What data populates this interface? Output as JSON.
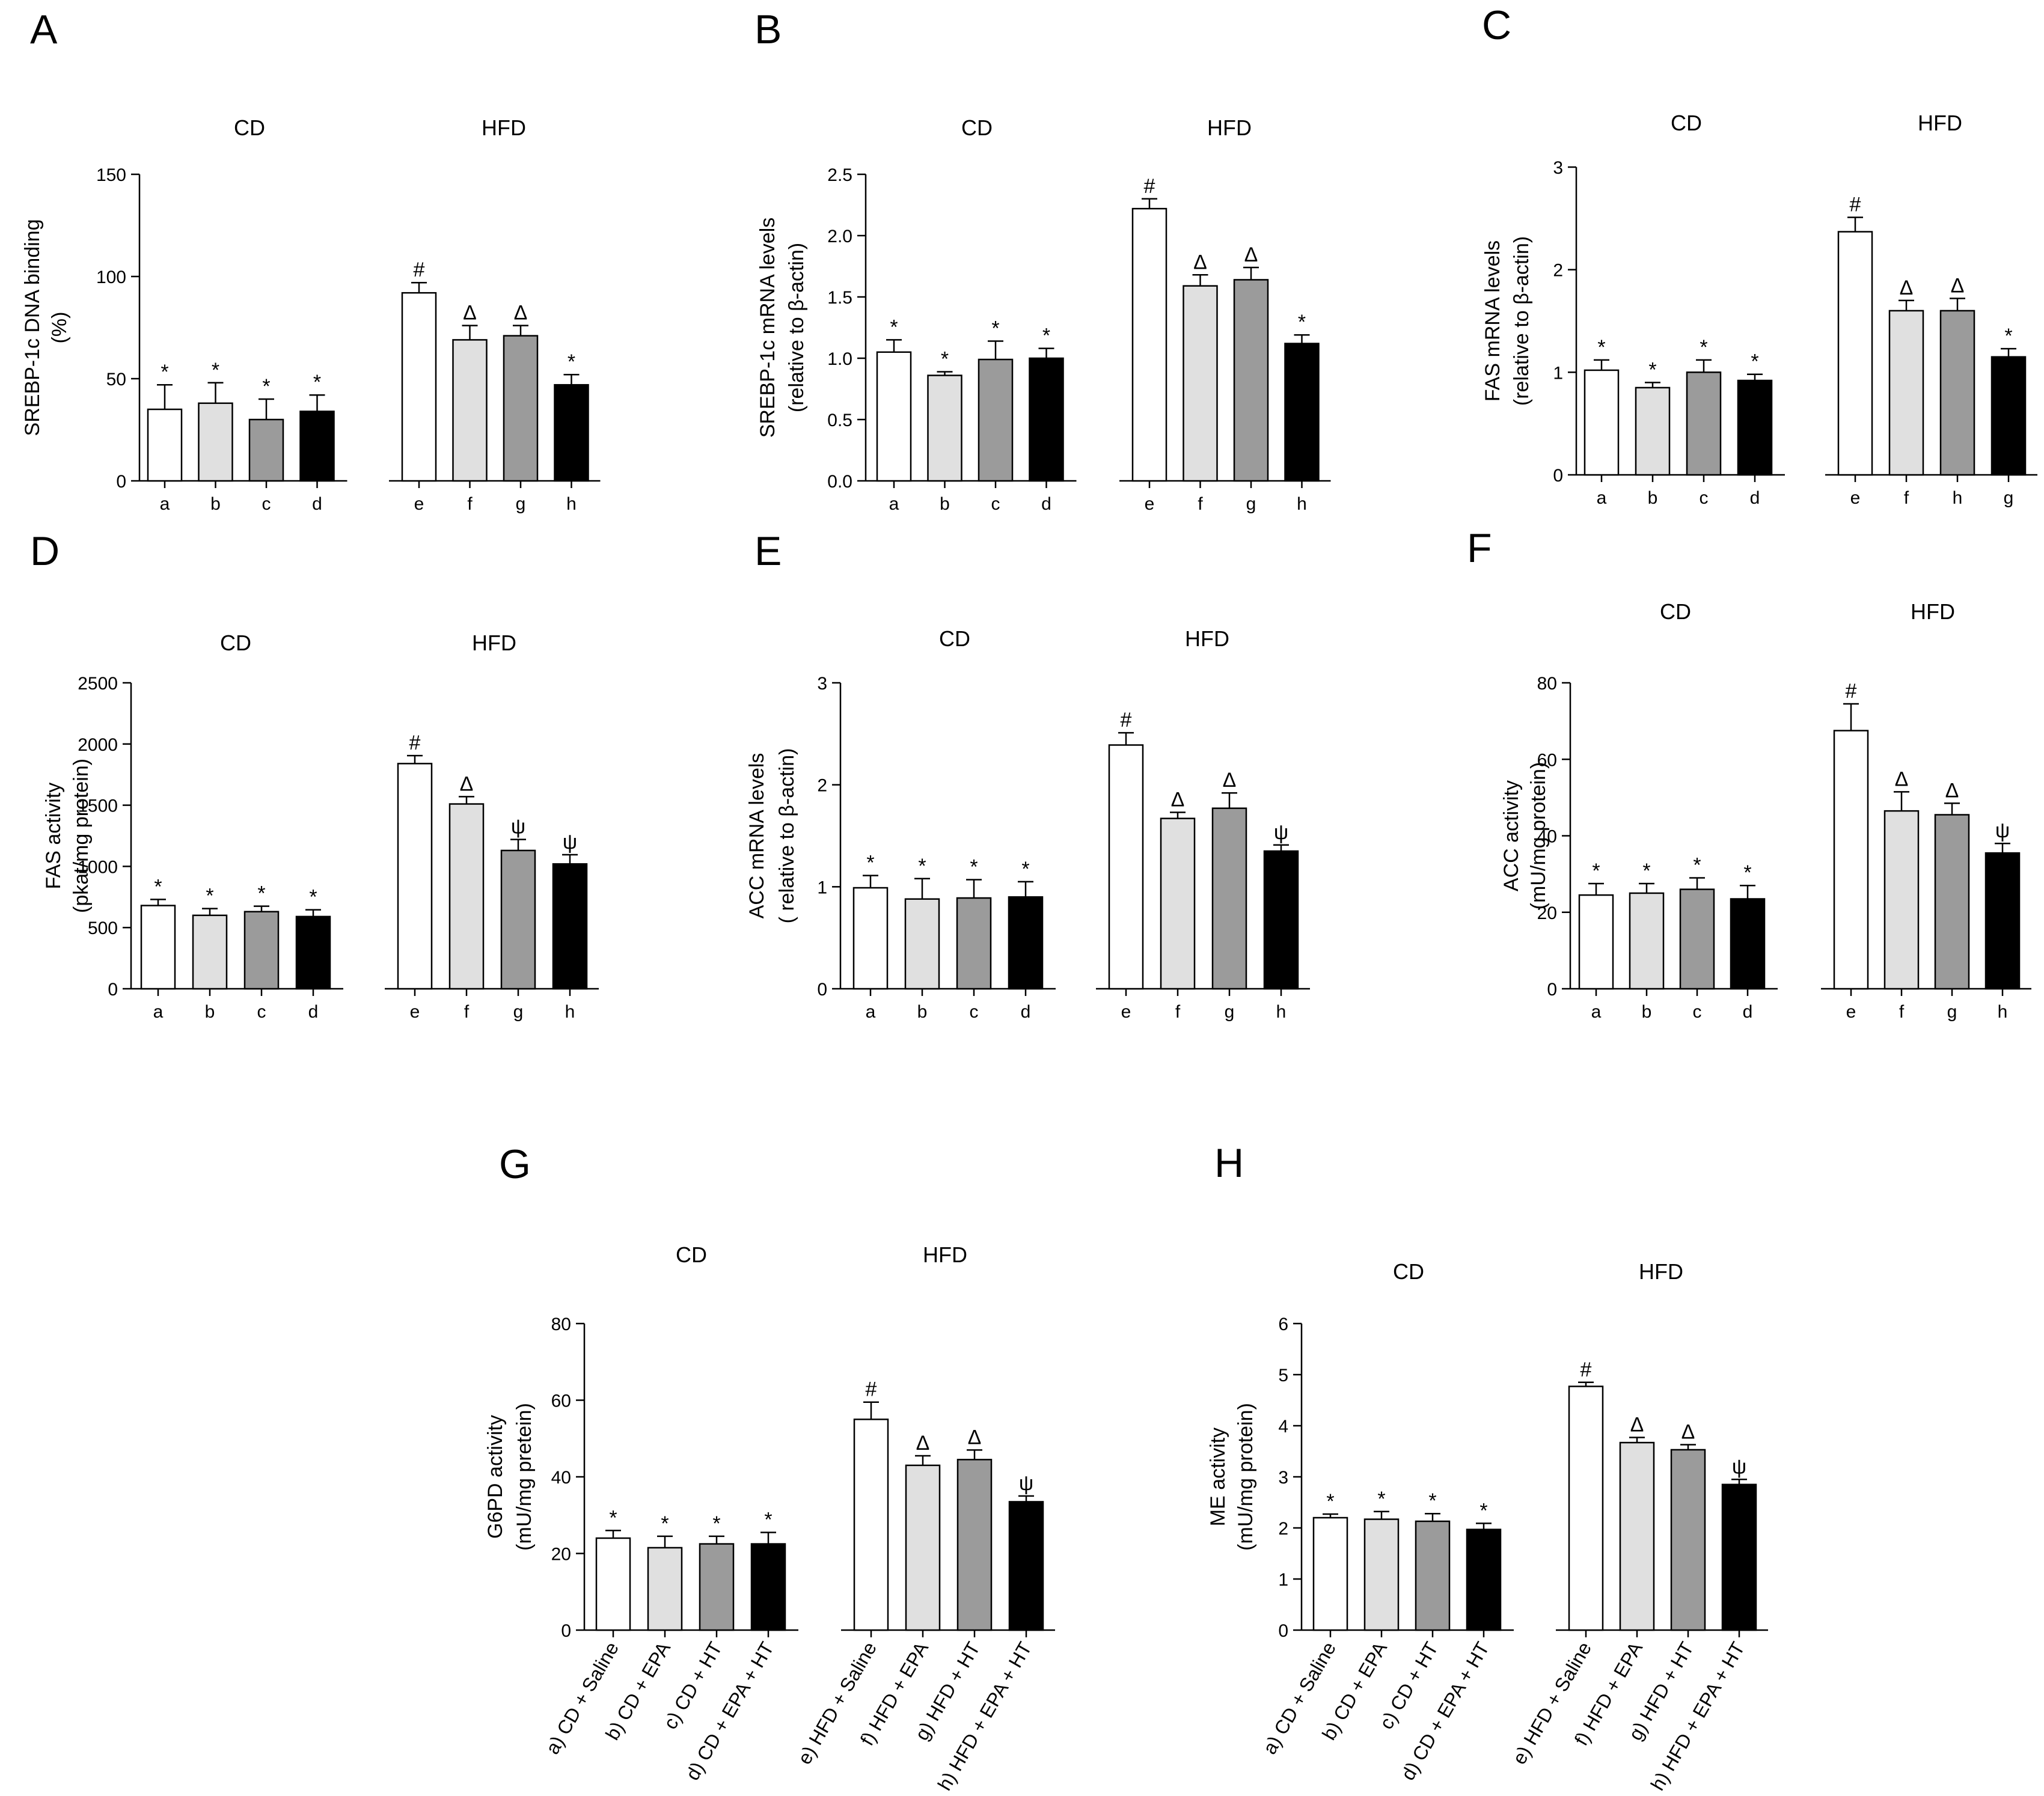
{
  "colors": {
    "bar_a": "#ffffff",
    "bar_b": "#e0e0e0",
    "bar_c": "#9b9b9b",
    "bar_d": "#000000",
    "stroke": "#000000"
  },
  "chart_data": [
    {
      "panel": "A",
      "type": "bar",
      "group_labels": [
        "CD",
        "HFD"
      ],
      "ylabel": [
        "SREBP-1c DNA binding",
        "(%)"
      ],
      "ylim": [
        0,
        150
      ],
      "yticks": [
        0,
        50,
        100,
        150
      ],
      "categories": [
        "a",
        "b",
        "c",
        "d",
        "e",
        "f",
        "g",
        "h"
      ],
      "values": [
        35,
        38,
        30,
        34,
        92,
        69,
        71,
        47
      ],
      "errors": [
        12,
        10,
        10,
        8,
        5,
        7,
        5,
        5
      ],
      "markers": [
        "*",
        "*",
        "*",
        "*",
        "#",
        "Δ",
        "Δ",
        "*"
      ]
    },
    {
      "panel": "B",
      "type": "bar",
      "group_labels": [
        "CD",
        "HFD"
      ],
      "ylabel": [
        "SREBP-1c mRNA levels",
        "(relative to β-actin)"
      ],
      "ylim": [
        0,
        2.5
      ],
      "yticks": [
        0.0,
        0.5,
        1.0,
        1.5,
        2.0,
        2.5
      ],
      "tick_decimals": 1,
      "categories": [
        "a",
        "b",
        "c",
        "d",
        "e",
        "f",
        "g",
        "h"
      ],
      "values": [
        1.05,
        0.86,
        0.99,
        1.0,
        2.22,
        1.59,
        1.64,
        1.12
      ],
      "errors": [
        0.1,
        0.03,
        0.15,
        0.08,
        0.08,
        0.09,
        0.1,
        0.07
      ],
      "markers": [
        "*",
        "*",
        "*",
        "*",
        "#",
        "Δ",
        "Δ",
        "*"
      ]
    },
    {
      "panel": "C",
      "type": "bar",
      "group_labels": [
        "CD",
        "HFD"
      ],
      "ylabel": [
        "FAS mRNA levels",
        "(relative to β-actin)"
      ],
      "ylim": [
        0,
        3
      ],
      "yticks": [
        0,
        1,
        2,
        3
      ],
      "categories": [
        "a",
        "b",
        "c",
        "d",
        "e",
        "f",
        "h",
        "g"
      ],
      "values": [
        1.02,
        0.85,
        1.0,
        0.92,
        2.37,
        1.6,
        1.6,
        1.15
      ],
      "errors": [
        0.1,
        0.05,
        0.12,
        0.06,
        0.14,
        0.1,
        0.12,
        0.08
      ],
      "markers": [
        "*",
        "*",
        "*",
        "*",
        "#",
        "Δ",
        "Δ",
        "*"
      ]
    },
    {
      "panel": "D",
      "type": "bar",
      "group_labels": [
        "CD",
        "HFD"
      ],
      "ylabel": [
        "FAS activity",
        "(pkat/mg protein)"
      ],
      "ylim": [
        0,
        2500
      ],
      "yticks": [
        0,
        500,
        1000,
        1500,
        2000,
        2500
      ],
      "categories": [
        "a",
        "b",
        "c",
        "d",
        "e",
        "f",
        "g",
        "h"
      ],
      "values": [
        680,
        600,
        630,
        590,
        1840,
        1510,
        1130,
        1020
      ],
      "errors": [
        50,
        55,
        45,
        55,
        65,
        60,
        90,
        75
      ],
      "markers": [
        "*",
        "*",
        "*",
        "*",
        "#",
        "Δ",
        "ψ",
        "ψ"
      ]
    },
    {
      "panel": "E",
      "type": "bar",
      "group_labels": [
        "CD",
        "HFD"
      ],
      "ylabel": [
        "ACC mRNA levels",
        "(    relative to β-actin)"
      ],
      "ylim": [
        0,
        3
      ],
      "yticks": [
        0,
        1,
        2,
        3
      ],
      "categories": [
        "a",
        "b",
        "c",
        "d",
        "e",
        "f",
        "g",
        "h"
      ],
      "values": [
        0.99,
        0.88,
        0.89,
        0.9,
        2.39,
        1.67,
        1.77,
        1.35
      ],
      "errors": [
        0.12,
        0.2,
        0.18,
        0.15,
        0.12,
        0.06,
        0.15,
        0.06
      ],
      "markers": [
        "*",
        "*",
        "*",
        "*",
        "#",
        "Δ",
        "Δ",
        "ψ"
      ]
    },
    {
      "panel": "F",
      "type": "bar",
      "group_labels": [
        "CD",
        "HFD"
      ],
      "ylabel": [
        "ACC activity",
        "(mU/mg protein)"
      ],
      "ylim": [
        0,
        80
      ],
      "yticks": [
        0,
        20,
        40,
        60,
        80
      ],
      "categories": [
        "a",
        "b",
        "c",
        "d",
        "e",
        "f",
        "g",
        "h"
      ],
      "values": [
        24.5,
        25,
        26,
        23.5,
        67.5,
        46.5,
        45.5,
        35.5
      ],
      "errors": [
        3,
        2.5,
        3,
        3.5,
        7,
        5,
        3,
        2.5
      ],
      "markers": [
        "*",
        "*",
        "*",
        "*",
        "#",
        "Δ",
        "Δ",
        "ψ"
      ]
    },
    {
      "panel": "G",
      "type": "bar",
      "group_labels": [
        "CD",
        "HFD"
      ],
      "ylabel": [
        "G6PD activity",
        "(mU/mg pretein)"
      ],
      "ylim": [
        0,
        80
      ],
      "yticks": [
        0,
        20,
        40,
        60,
        80
      ],
      "categories": [
        "a) CD + Saline",
        "b) CD + EPA",
        "c) CD + HT",
        "d) CD + EPA + HT",
        "e) HFD + Saline",
        "f) HFD + EPA",
        "g) HFD + HT",
        "h) HFD + EPA + HT"
      ],
      "values": [
        24,
        21.5,
        22.5,
        22.5,
        55,
        43,
        44.5,
        33.5
      ],
      "errors": [
        2,
        3,
        2,
        3,
        4.5,
        2.5,
        2.5,
        1.5
      ],
      "markers": [
        "*",
        "*",
        "*",
        "*",
        "#",
        "Δ",
        "Δ",
        "ψ"
      ]
    },
    {
      "panel": "H",
      "type": "bar",
      "group_labels": [
        "CD",
        "HFD"
      ],
      "ylabel": [
        "ME activity",
        "(mU/mg protein)"
      ],
      "ylim": [
        0,
        6
      ],
      "yticks": [
        0,
        1,
        2,
        3,
        4,
        5,
        6
      ],
      "categories": [
        "a) CD + Saline",
        "b) CD + EPA",
        "c) CD + HT",
        "d) CD + EPA + HT",
        "e) HFD + Saline",
        "f) HFD + EPA",
        "g) HFD + HT",
        "h) HFD + EPA + HT"
      ],
      "values": [
        2.2,
        2.17,
        2.13,
        1.97,
        4.77,
        3.67,
        3.53,
        2.85
      ],
      "errors": [
        0.07,
        0.15,
        0.15,
        0.12,
        0.08,
        0.1,
        0.1,
        0.1
      ],
      "markers": [
        "*",
        "*",
        "*",
        "*",
        "#",
        "Δ",
        "Δ",
        "ψ"
      ]
    }
  ]
}
